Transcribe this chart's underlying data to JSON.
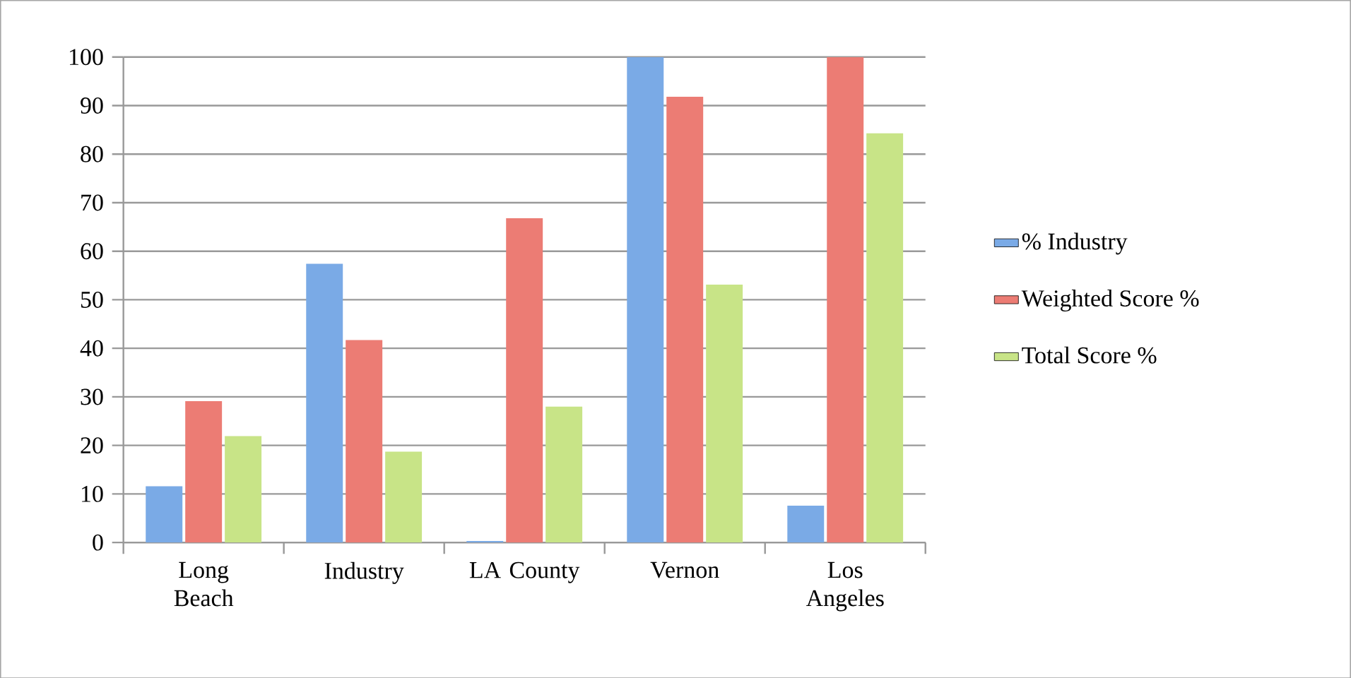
{
  "chart_data": {
    "type": "bar",
    "categories": [
      "Long Beach",
      "Industry",
      "LA County",
      "Vernon",
      "Los Angeles"
    ],
    "series": [
      {
        "name": "% Industry",
        "color": "#7aaae6",
        "values": [
          11.6,
          57.4,
          0.3,
          100,
          7.6
        ]
      },
      {
        "name": "Weighted Score %",
        "color": "#ec7c74",
        "values": [
          29.1,
          41.7,
          66.8,
          91.8,
          100
        ]
      },
      {
        "name": "Total Score %",
        "color": "#c8e487",
        "values": [
          21.9,
          18.7,
          28.0,
          53.1,
          84.3
        ]
      }
    ],
    "ylim": [
      0,
      100
    ],
    "yticks": [
      0,
      10,
      20,
      30,
      40,
      50,
      60,
      70,
      80,
      90,
      100
    ],
    "grid": "y",
    "legend": "right"
  }
}
